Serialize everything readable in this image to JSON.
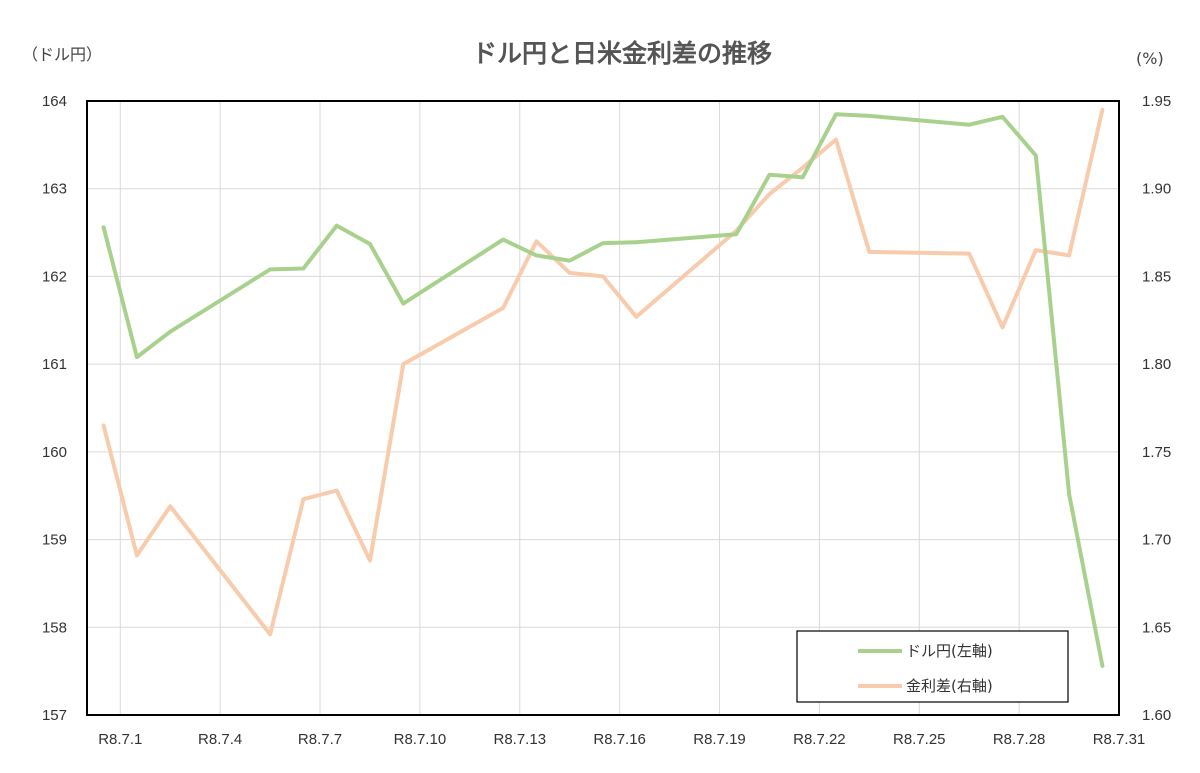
{
  "chart_data": {
    "type": "line",
    "title": "ドル円と日米金利差の推移",
    "left_unit": "（ドル円）",
    "right_unit": "(%)",
    "x_labels": [
      "R8.7.1",
      "R8.7.4",
      "R8.7.7",
      "R8.7.10",
      "R8.7.13",
      "R8.7.16",
      "R8.7.19",
      "R8.7.22",
      "R8.7.25",
      "R8.7.28",
      "R8.7.31"
    ],
    "y_left": {
      "lim": [
        157,
        164
      ],
      "ticks": [
        "157",
        "158",
        "159",
        "160",
        "161",
        "162",
        "163",
        "164"
      ]
    },
    "y_right": {
      "lim": [
        1.6,
        1.95
      ],
      "ticks": [
        "1.60",
        "1.65",
        "1.70",
        "1.75",
        "1.80",
        "1.85",
        "1.90",
        "1.95"
      ]
    },
    "grid": true,
    "legend_position": "bottom-right",
    "series": [
      {
        "name": "ドル円(左軸)",
        "axis": "left",
        "color": "#a9d18e",
        "x": [
          "R8.7.1",
          "R8.7.2",
          "R8.7.3",
          "R8.7.6",
          "R8.7.7",
          "R8.7.8",
          "R8.7.9",
          "R8.7.10",
          "R8.7.13",
          "R8.7.14",
          "R8.7.15",
          "R8.7.16",
          "R8.7.17",
          "R8.7.20",
          "R8.7.21",
          "R8.7.22",
          "R8.7.23",
          "R8.7.24",
          "R8.7.27",
          "R8.7.28",
          "R8.7.29",
          "R8.7.30",
          "R8.7.31"
        ],
        "values": [
          162.56,
          161.08,
          161.37,
          162.08,
          162.09,
          162.58,
          162.37,
          161.69,
          162.42,
          162.24,
          162.18,
          162.38,
          162.39,
          162.48,
          163.16,
          163.13,
          163.85,
          163.83,
          163.73,
          163.82,
          163.38,
          159.52,
          157.56
        ]
      },
      {
        "name": "金利差(右軸)",
        "axis": "right",
        "color": "#f8cbad",
        "x": [
          "R8.7.1",
          "R8.7.2",
          "R8.7.3",
          "R8.7.6",
          "R8.7.7",
          "R8.7.8",
          "R8.7.9",
          "R8.7.10",
          "R8.7.13",
          "R8.7.14",
          "R8.7.15",
          "R8.7.16",
          "R8.7.17",
          "R8.7.20",
          "R8.7.21",
          "R8.7.22",
          "R8.7.23",
          "R8.7.24",
          "R8.7.27",
          "R8.7.28",
          "R8.7.29",
          "R8.7.30",
          "R8.7.31"
        ],
        "values": [
          1.765,
          1.691,
          1.719,
          1.646,
          1.723,
          1.728,
          1.688,
          1.8,
          1.832,
          1.87,
          1.852,
          1.85,
          1.827,
          1.876,
          1.897,
          1.912,
          1.928,
          1.864,
          1.863,
          1.821,
          1.865,
          1.862,
          1.945
        ]
      }
    ]
  }
}
